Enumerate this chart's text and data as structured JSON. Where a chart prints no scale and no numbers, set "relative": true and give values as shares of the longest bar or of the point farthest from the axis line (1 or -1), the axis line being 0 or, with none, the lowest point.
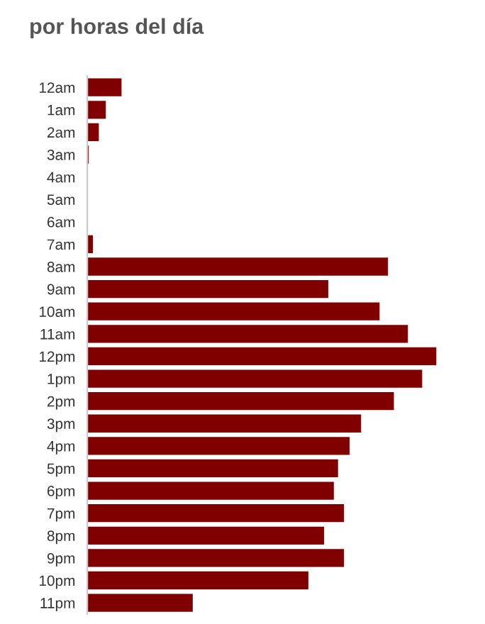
{
  "chart_data": {
    "type": "bar",
    "orientation": "horizontal",
    "relative": true,
    "title": "por horas del día",
    "categories": [
      "12am",
      "1am",
      "2am",
      "3am",
      "4am",
      "5am",
      "6am",
      "7am",
      "8am",
      "9am",
      "10am",
      "11am",
      "12pm",
      "1pm",
      "2pm",
      "3pm",
      "4pm",
      "5pm",
      "6pm",
      "7pm",
      "8pm",
      "9pm",
      "10pm",
      "11pm"
    ],
    "values": [
      0.098,
      0.053,
      0.033,
      0.004,
      0,
      0,
      0,
      0.016,
      0.861,
      0.69,
      0.837,
      0.918,
      1,
      0.959,
      0.878,
      0.784,
      0.751,
      0.718,
      0.706,
      0.735,
      0.678,
      0.735,
      0.633,
      0.302
    ],
    "color": "#800000",
    "grid": false,
    "legend": false
  }
}
